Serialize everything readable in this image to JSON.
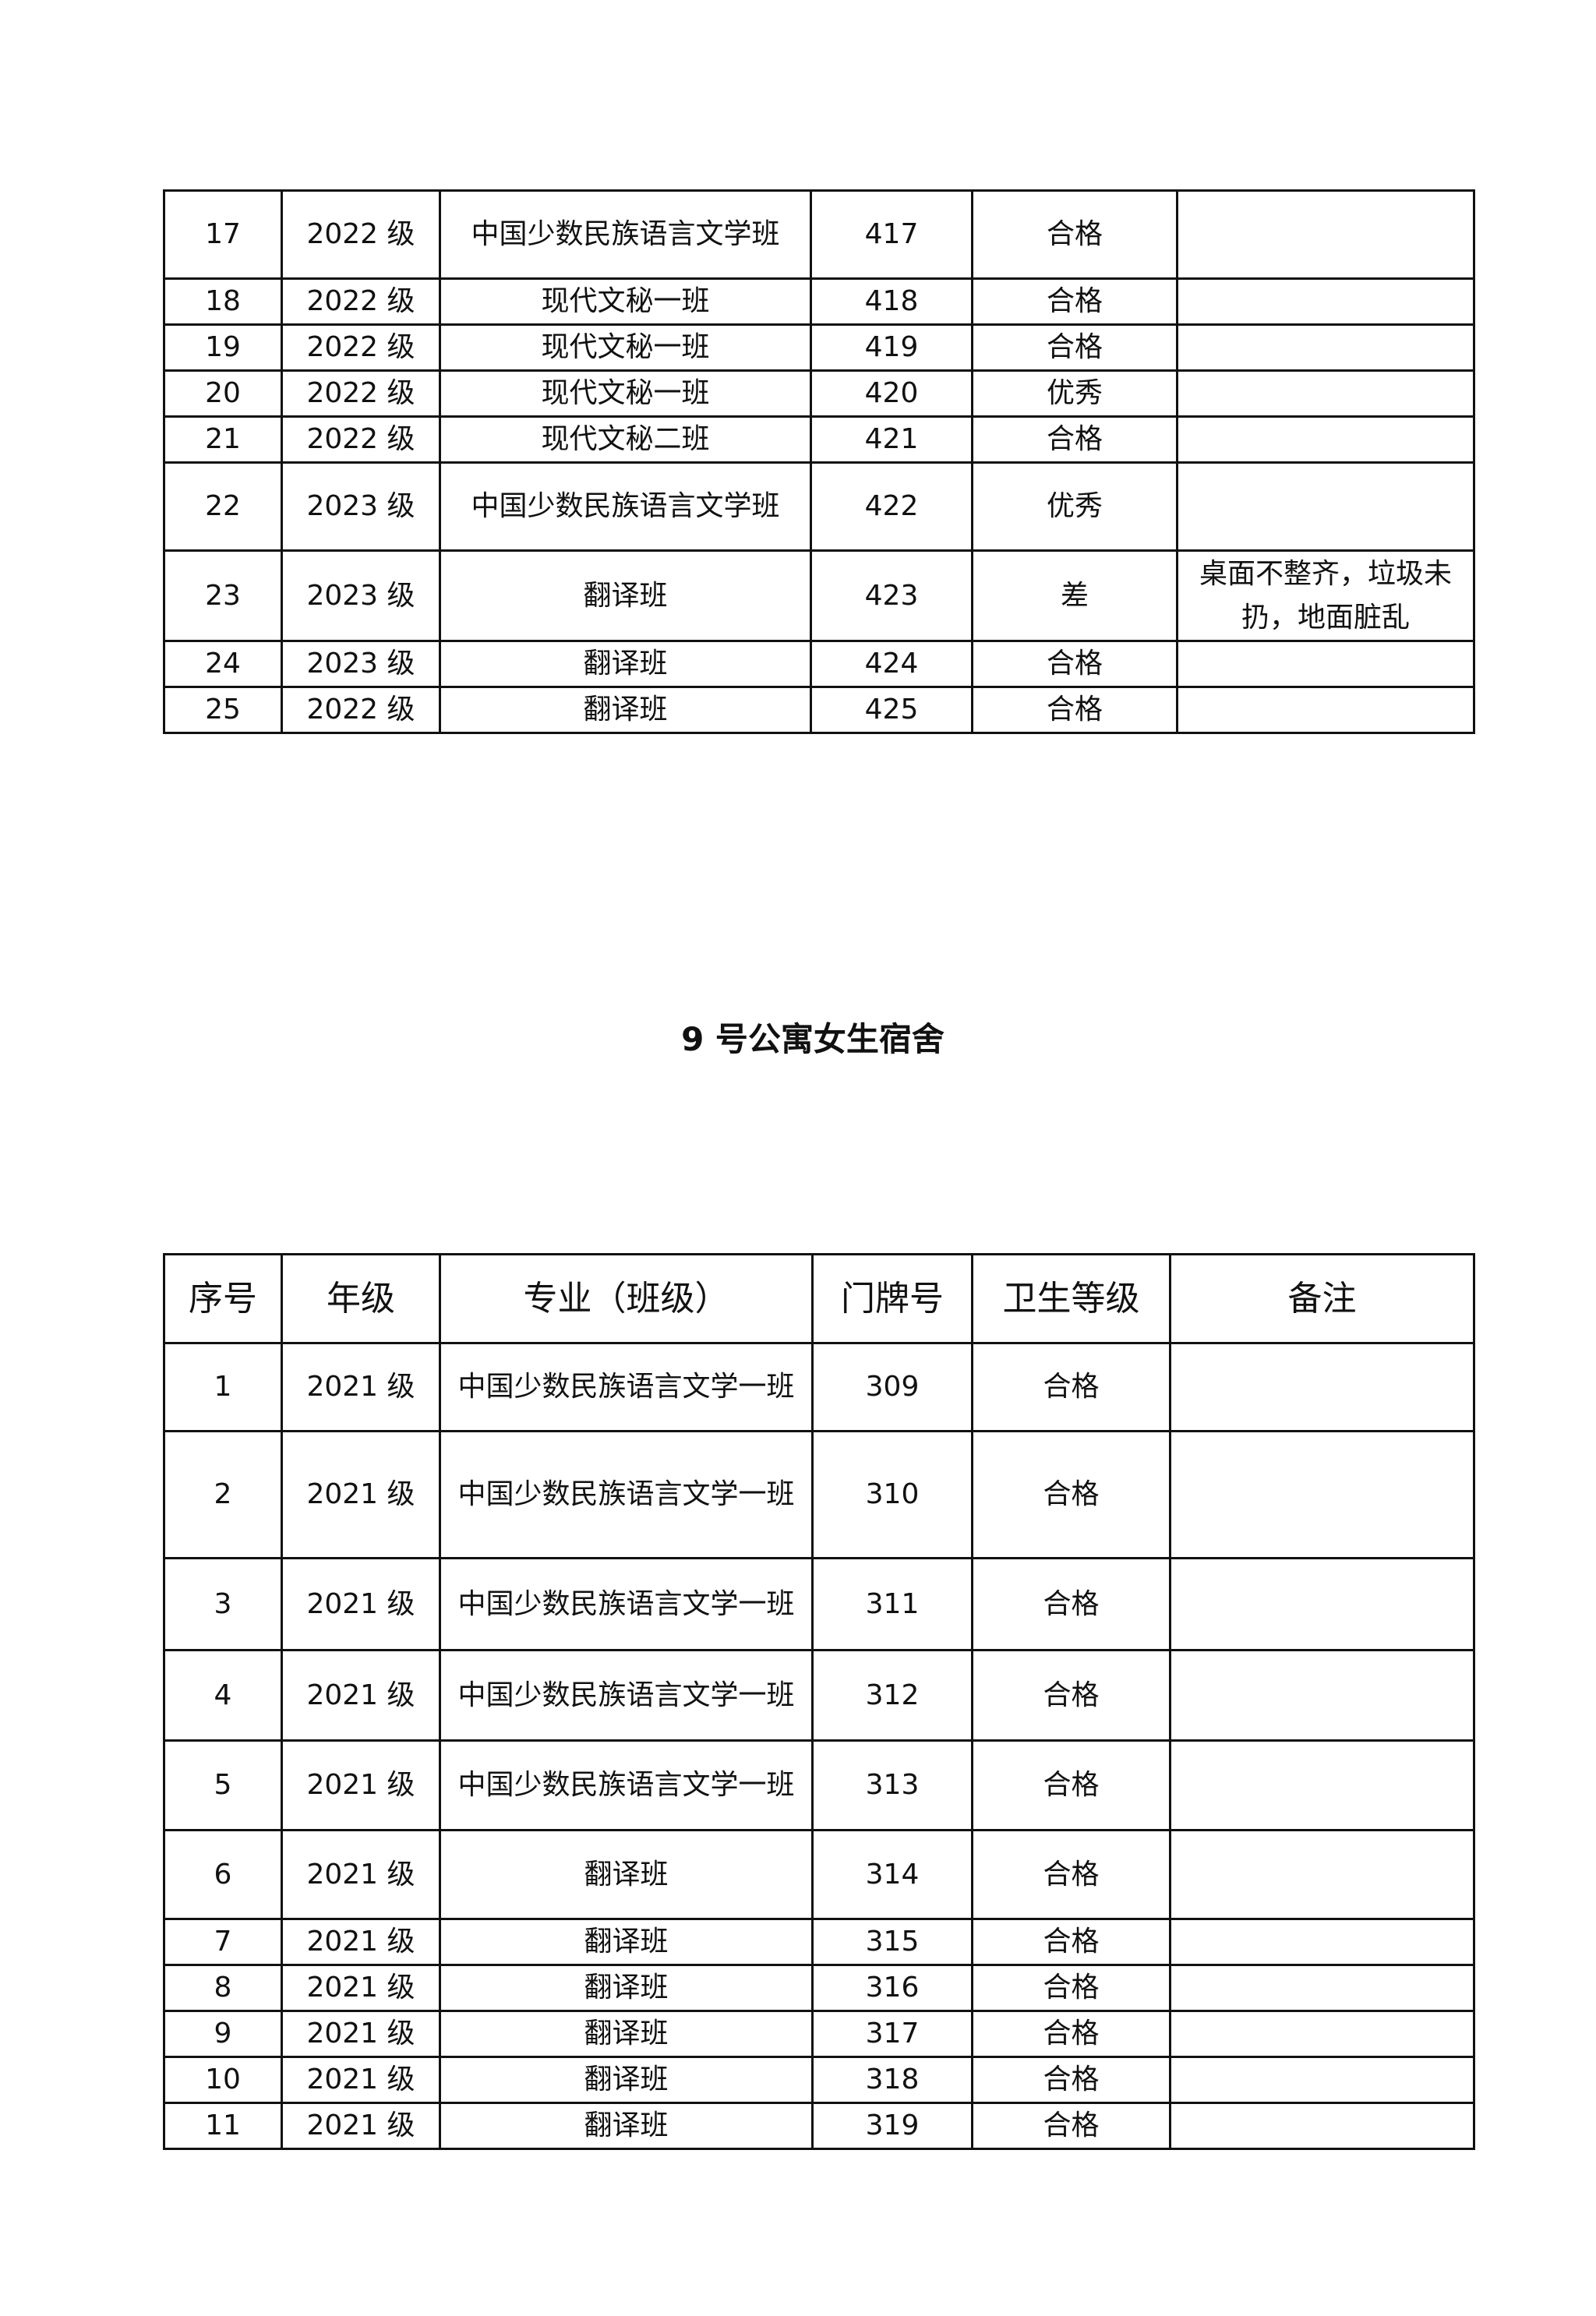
{
  "table1": {
    "rows": [
      [
        "17",
        "2022 级",
        "中国少数民族语言文学班",
        "417",
        "合格",
        ""
      ],
      [
        "18",
        "2022 级",
        "现代文秘一班",
        "418",
        "合格",
        ""
      ],
      [
        "19",
        "2022 级",
        "现代文秘一班",
        "419",
        "合格",
        ""
      ],
      [
        "20",
        "2022 级",
        "现代文秘一班",
        "420",
        "优秀",
        ""
      ],
      [
        "21",
        "2022 级",
        "现代文秘二班",
        "421",
        "合格",
        ""
      ],
      [
        "22",
        "2023 级",
        "中国少数民族语言文学班",
        "422",
        "优秀",
        ""
      ],
      [
        "23",
        "2023 级",
        "翻译班",
        "423",
        "差",
        "桌面不整齐，垃圾未扔，地面脏乱"
      ],
      [
        "24",
        "2023 级",
        "翻译班",
        "424",
        "合格",
        ""
      ],
      [
        "25",
        "2022 级",
        "翻译班",
        "425",
        "合格",
        ""
      ]
    ]
  },
  "section_title": "9 号公寓女生宿舍",
  "table2": {
    "headers": [
      "序号",
      "年级",
      "专业（班级）",
      "门牌号",
      "卫生等级",
      "备注"
    ],
    "rows": [
      [
        "1",
        "2021 级",
        "中国少数民族语言文学一班",
        "309",
        "合格",
        ""
      ],
      [
        "2",
        "2021 级",
        "中国少数民族语言文学一班",
        "310",
        "合格",
        ""
      ],
      [
        "3",
        "2021 级",
        "中国少数民族语言文学一班",
        "311",
        "合格",
        ""
      ],
      [
        "4",
        "2021 级",
        "中国少数民族语言文学一班",
        "312",
        "合格",
        ""
      ],
      [
        "5",
        "2021 级",
        "中国少数民族语言文学一班",
        "313",
        "合格",
        ""
      ],
      [
        "6",
        "2021 级",
        "翻译班",
        "314",
        "合格",
        ""
      ],
      [
        "7",
        "2021 级",
        "翻译班",
        "315",
        "合格",
        ""
      ],
      [
        "8",
        "2021 级",
        "翻译班",
        "316",
        "合格",
        ""
      ],
      [
        "9",
        "2021 级",
        "翻译班",
        "317",
        "合格",
        ""
      ],
      [
        "10",
        "2021 级",
        "翻译班",
        "318",
        "合格",
        ""
      ],
      [
        "11",
        "2021 级",
        "翻译班",
        "319",
        "合格",
        ""
      ]
    ]
  }
}
